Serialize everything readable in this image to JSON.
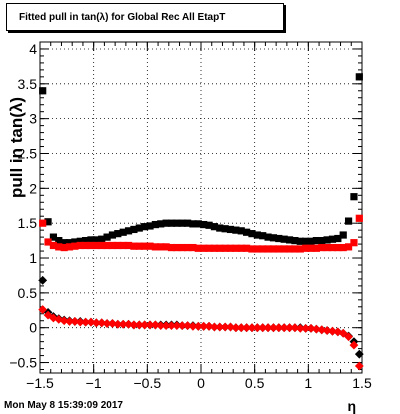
{
  "chart_data": {
    "type": "scatter",
    "title": "Fitted pull in tan(λ) for Global Rec All EtapT",
    "xlabel": "η",
    "ylabel": "pull in tan(λ)",
    "xlim": [
      -1.5,
      1.5
    ],
    "ylim": [
      -0.65,
      4.1
    ],
    "grid": true,
    "x_ticks": [
      "-1.5",
      "-1",
      "-0.5",
      "0",
      "0.5",
      "1",
      "1.5"
    ],
    "y_ticks": [
      "-0.5",
      "0",
      "0.5",
      "1",
      "1.5",
      "2",
      "2.5",
      "3",
      "3.5",
      "4"
    ],
    "series": [
      {
        "color": "#000000",
        "marker": "square",
        "x": [
          -1.475,
          -1.425,
          -1.375,
          -1.325,
          -1.275,
          -1.225,
          -1.175,
          -1.125,
          -1.075,
          -1.025,
          -0.975,
          -0.925,
          -0.875,
          -0.825,
          -0.775,
          -0.725,
          -0.675,
          -0.625,
          -0.575,
          -0.525,
          -0.475,
          -0.425,
          -0.375,
          -0.325,
          -0.275,
          -0.225,
          -0.175,
          -0.125,
          -0.075,
          -0.025,
          0.025,
          0.075,
          0.125,
          0.175,
          0.225,
          0.275,
          0.325,
          0.375,
          0.425,
          0.475,
          0.525,
          0.575,
          0.625,
          0.675,
          0.725,
          0.775,
          0.825,
          0.875,
          0.925,
          0.975,
          1.025,
          1.075,
          1.125,
          1.175,
          1.225,
          1.275,
          1.325,
          1.375,
          1.425,
          1.475
        ],
        "values": [
          3.4,
          1.52,
          1.3,
          1.25,
          1.22,
          1.22,
          1.23,
          1.24,
          1.25,
          1.26,
          1.26,
          1.27,
          1.3,
          1.33,
          1.35,
          1.37,
          1.39,
          1.41,
          1.43,
          1.45,
          1.46,
          1.48,
          1.49,
          1.5,
          1.5,
          1.5,
          1.5,
          1.5,
          1.49,
          1.49,
          1.48,
          1.47,
          1.45,
          1.43,
          1.42,
          1.41,
          1.4,
          1.39,
          1.37,
          1.35,
          1.33,
          1.32,
          1.3,
          1.29,
          1.28,
          1.27,
          1.26,
          1.25,
          1.24,
          1.24,
          1.24,
          1.25,
          1.25,
          1.26,
          1.27,
          1.28,
          1.33,
          1.53,
          1.88,
          3.6
        ],
        "errors": [
          0.05,
          0.04,
          0.03,
          0.02,
          0.02,
          0.02,
          0.02,
          0.02,
          0.02,
          0.02,
          0.02,
          0.02,
          0.02,
          0.02,
          0.02,
          0.02,
          0.02,
          0.02,
          0.02,
          0.02,
          0.02,
          0.02,
          0.02,
          0.02,
          0.02,
          0.02,
          0.02,
          0.02,
          0.02,
          0.02,
          0.02,
          0.02,
          0.02,
          0.02,
          0.02,
          0.02,
          0.02,
          0.02,
          0.02,
          0.02,
          0.02,
          0.02,
          0.02,
          0.02,
          0.02,
          0.02,
          0.02,
          0.02,
          0.02,
          0.02,
          0.02,
          0.02,
          0.02,
          0.02,
          0.02,
          0.02,
          0.02,
          0.03,
          0.04,
          0.05
        ]
      },
      {
        "color": "#000000",
        "marker": "diamond",
        "x": [
          -1.475,
          -1.425,
          -1.375,
          -1.325,
          -1.275,
          -1.225,
          -1.175,
          -1.125,
          -1.075,
          -1.025,
          -0.975,
          -0.925,
          -0.875,
          -0.825,
          -0.775,
          -0.725,
          -0.675,
          -0.625,
          -0.575,
          -0.525,
          -0.475,
          -0.425,
          -0.375,
          -0.325,
          -0.275,
          -0.225,
          -0.175,
          -0.125,
          -0.075,
          -0.025,
          0.025,
          0.075,
          0.125,
          0.175,
          0.225,
          0.275,
          0.325,
          0.375,
          0.425,
          0.475,
          0.525,
          0.575,
          0.625,
          0.675,
          0.725,
          0.775,
          0.825,
          0.875,
          0.925,
          0.975,
          1.025,
          1.075,
          1.125,
          1.175,
          1.225,
          1.275,
          1.325,
          1.375,
          1.425,
          1.475
        ],
        "values": [
          0.68,
          0.22,
          0.16,
          0.13,
          0.11,
          0.1,
          0.09,
          0.09,
          0.08,
          0.08,
          0.07,
          0.07,
          0.06,
          0.06,
          0.05,
          0.05,
          0.05,
          0.04,
          0.04,
          0.04,
          0.04,
          0.04,
          0.04,
          0.04,
          0.04,
          0.04,
          0.03,
          0.03,
          0.03,
          0.02,
          0.02,
          0.02,
          0.01,
          0.01,
          0.01,
          0.01,
          0.0,
          0.0,
          0.0,
          0.0,
          0.0,
          0.0,
          0.0,
          0.0,
          0.0,
          0.0,
          0.0,
          0.0,
          0.0,
          -0.01,
          -0.01,
          -0.02,
          -0.03,
          -0.04,
          -0.05,
          -0.06,
          -0.08,
          -0.12,
          -0.2,
          -0.38
        ]
      },
      {
        "color": "#ff0000",
        "marker": "square",
        "x": [
          -1.475,
          -1.425,
          -1.375,
          -1.325,
          -1.275,
          -1.225,
          -1.175,
          -1.125,
          -1.075,
          -1.025,
          -0.975,
          -0.925,
          -0.875,
          -0.825,
          -0.775,
          -0.725,
          -0.675,
          -0.625,
          -0.575,
          -0.525,
          -0.475,
          -0.425,
          -0.375,
          -0.325,
          -0.275,
          -0.225,
          -0.175,
          -0.125,
          -0.075,
          -0.025,
          0.025,
          0.075,
          0.125,
          0.175,
          0.225,
          0.275,
          0.325,
          0.375,
          0.425,
          0.475,
          0.525,
          0.575,
          0.625,
          0.675,
          0.725,
          0.775,
          0.825,
          0.875,
          0.925,
          0.975,
          1.025,
          1.075,
          1.125,
          1.175,
          1.225,
          1.275,
          1.325,
          1.375,
          1.425,
          1.475
        ],
        "values": [
          1.5,
          1.23,
          1.18,
          1.16,
          1.15,
          1.16,
          1.17,
          1.18,
          1.18,
          1.18,
          1.18,
          1.18,
          1.18,
          1.18,
          1.18,
          1.18,
          1.18,
          1.17,
          1.17,
          1.17,
          1.17,
          1.16,
          1.16,
          1.16,
          1.15,
          1.15,
          1.15,
          1.15,
          1.15,
          1.14,
          1.14,
          1.14,
          1.14,
          1.14,
          1.14,
          1.14,
          1.14,
          1.14,
          1.14,
          1.13,
          1.13,
          1.13,
          1.13,
          1.13,
          1.13,
          1.13,
          1.13,
          1.13,
          1.13,
          1.14,
          1.14,
          1.14,
          1.15,
          1.15,
          1.15,
          1.15,
          1.15,
          1.16,
          1.22,
          1.57
        ]
      },
      {
        "color": "#ff0000",
        "marker": "diamond",
        "x": [
          -1.475,
          -1.425,
          -1.375,
          -1.325,
          -1.275,
          -1.225,
          -1.175,
          -1.125,
          -1.075,
          -1.025,
          -0.975,
          -0.925,
          -0.875,
          -0.825,
          -0.775,
          -0.725,
          -0.675,
          -0.625,
          -0.575,
          -0.525,
          -0.475,
          -0.425,
          -0.375,
          -0.325,
          -0.275,
          -0.225,
          -0.175,
          -0.125,
          -0.075,
          -0.025,
          0.025,
          0.075,
          0.125,
          0.175,
          0.225,
          0.275,
          0.325,
          0.375,
          0.425,
          0.475,
          0.525,
          0.575,
          0.625,
          0.675,
          0.725,
          0.775,
          0.825,
          0.875,
          0.925,
          0.975,
          1.025,
          1.075,
          1.125,
          1.175,
          1.225,
          1.275,
          1.325,
          1.375,
          1.425,
          1.475
        ],
        "values": [
          0.26,
          0.18,
          0.14,
          0.12,
          0.1,
          0.09,
          0.09,
          0.08,
          0.08,
          0.08,
          0.07,
          0.07,
          0.06,
          0.06,
          0.05,
          0.05,
          0.05,
          0.04,
          0.04,
          0.04,
          0.04,
          0.04,
          0.03,
          0.03,
          0.03,
          0.03,
          0.03,
          0.03,
          0.02,
          0.02,
          0.02,
          0.02,
          0.01,
          0.01,
          0.01,
          0.01,
          0.0,
          0.0,
          0.0,
          0.0,
          0.0,
          0.0,
          0.0,
          0.0,
          0.0,
          0.0,
          0.0,
          0.0,
          -0.01,
          -0.01,
          -0.01,
          -0.02,
          -0.03,
          -0.04,
          -0.05,
          -0.06,
          -0.08,
          -0.13,
          -0.25,
          -0.55
        ]
      }
    ]
  },
  "footer": {
    "timestamp": "Mon May  8 15:39:09 2017"
  }
}
